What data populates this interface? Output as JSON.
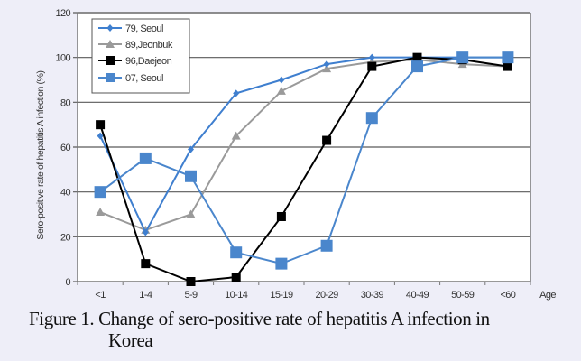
{
  "chart_data": {
    "type": "line",
    "title": "",
    "xlabel": "Age",
    "ylabel": "Sero-positive rate of hepatitis A infection (%)",
    "categories": [
      "<1",
      "1-4",
      "5-9",
      "10-14",
      "15-19",
      "20-29",
      "30-39",
      "40-49",
      "50-59",
      "<60"
    ],
    "ylim": [
      0,
      120
    ],
    "yticks": [
      0,
      20,
      40,
      60,
      80,
      100,
      120
    ],
    "grid": true,
    "legend_position": "top-left",
    "series": [
      {
        "name": "79, Seoul",
        "color": "#3f7fcf",
        "marker": "diamond",
        "values": [
          65,
          22,
          59,
          84,
          90,
          97,
          100,
          100,
          100,
          100
        ]
      },
      {
        "name": "89,Jeonbuk",
        "color": "#9a9a9a",
        "marker": "triangle",
        "values": [
          31,
          23,
          30,
          65,
          85,
          95,
          98,
          99,
          97,
          96
        ]
      },
      {
        "name": "96,Daejeon",
        "color": "#000000",
        "marker": "square",
        "values": [
          70,
          8,
          0,
          2,
          29,
          63,
          96,
          100,
          99,
          96
        ]
      },
      {
        "name": "07, Seoul",
        "color": "#4a86cc",
        "marker": "square-large",
        "values": [
          40,
          55,
          47,
          13,
          8,
          16,
          73,
          96,
          100,
          100
        ]
      }
    ]
  },
  "caption": {
    "line1": "Figure 1. Change of sero-positive rate of hepatitis A infection in",
    "line2": "Korea"
  }
}
